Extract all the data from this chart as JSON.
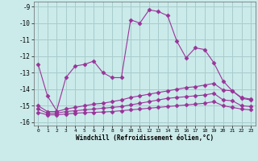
{
  "xlabel": "Windchill (Refroidissement éolien,°C)",
  "background_color": "#cbeaea",
  "grid_color": "#a8cccc",
  "line_color": "#993399",
  "x": [
    0,
    1,
    2,
    3,
    4,
    5,
    6,
    7,
    8,
    9,
    10,
    11,
    12,
    13,
    14,
    15,
    16,
    17,
    18,
    19,
    20,
    21,
    22,
    23
  ],
  "y_main": [
    -12.5,
    -14.4,
    -15.3,
    -13.3,
    -12.6,
    -12.5,
    -12.3,
    -13.0,
    -13.3,
    -13.3,
    -9.8,
    -10.0,
    -9.2,
    -9.3,
    -9.55,
    -11.1,
    -12.1,
    -11.5,
    -11.6,
    -12.4,
    -13.5,
    -14.1,
    -14.5,
    -14.6
  ],
  "y_line2": [
    -15.0,
    -15.35,
    -15.35,
    -15.2,
    -15.1,
    -15.0,
    -14.9,
    -14.85,
    -14.75,
    -14.65,
    -14.5,
    -14.4,
    -14.3,
    -14.2,
    -14.1,
    -14.0,
    -13.9,
    -13.85,
    -13.75,
    -13.65,
    -14.05,
    -14.1,
    -14.55,
    -14.65
  ],
  "y_line3": [
    -15.2,
    -15.45,
    -15.45,
    -15.35,
    -15.3,
    -15.25,
    -15.2,
    -15.15,
    -15.1,
    -15.05,
    -14.95,
    -14.85,
    -14.75,
    -14.65,
    -14.55,
    -14.5,
    -14.45,
    -14.4,
    -14.35,
    -14.25,
    -14.65,
    -14.7,
    -15.0,
    -15.05
  ],
  "y_line4": [
    -15.4,
    -15.55,
    -15.55,
    -15.5,
    -15.45,
    -15.42,
    -15.4,
    -15.38,
    -15.35,
    -15.3,
    -15.25,
    -15.2,
    -15.15,
    -15.1,
    -15.05,
    -15.0,
    -14.95,
    -14.9,
    -14.85,
    -14.75,
    -15.0,
    -15.1,
    -15.2,
    -15.25
  ],
  "ylim": [
    -16.2,
    -8.7
  ],
  "xlim": [
    -0.5,
    23.5
  ],
  "yticks": [
    -16,
    -15,
    -14,
    -13,
    -12,
    -11,
    -10,
    -9
  ],
  "xticks": [
    0,
    1,
    2,
    3,
    4,
    5,
    6,
    7,
    8,
    9,
    10,
    11,
    12,
    13,
    14,
    15,
    16,
    17,
    18,
    19,
    20,
    21,
    22,
    23
  ]
}
